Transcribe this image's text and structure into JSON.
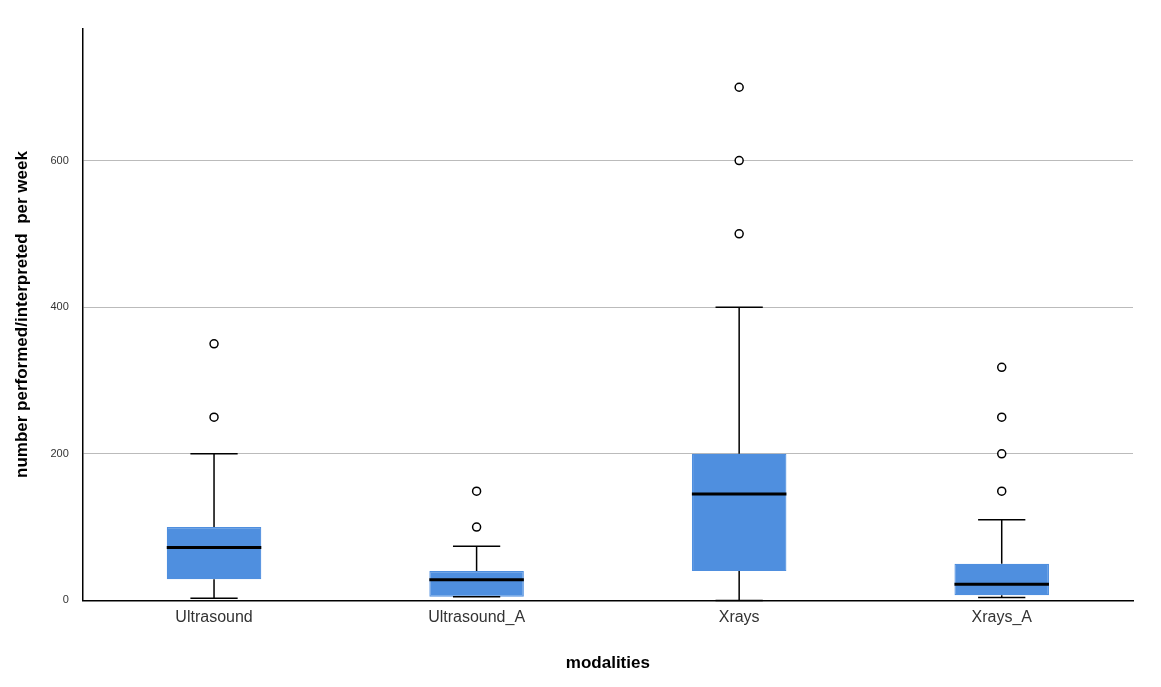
{
  "chart_data": {
    "type": "box",
    "xlabel": "modalities",
    "ylabel": "number performed/interpreted  per week",
    "categories": [
      "Ultrasound",
      "Ultrasound_A",
      "Xrays",
      "Xrays_A"
    ],
    "color": "#4f8fdf",
    "boxes": [
      {
        "low": 3,
        "q1": 29,
        "median": 72,
        "q3": 100,
        "high": 200,
        "outliers": [
          250,
          350
        ]
      },
      {
        "low": 5,
        "q1": 5,
        "median": 28,
        "q3": 40,
        "high": 74,
        "outliers": [
          100,
          149
        ]
      },
      {
        "low": 0,
        "q1": 40,
        "median": 145,
        "q3": 200,
        "high": 400,
        "outliers": [
          500,
          600,
          700
        ]
      },
      {
        "low": 4,
        "q1": 7,
        "median": 22,
        "q3": 50,
        "high": 110,
        "outliers": [
          149,
          200,
          250,
          318
        ]
      }
    ],
    "ylim": [
      0,
      780
    ],
    "yticks": [
      0,
      200,
      400,
      600
    ],
    "grid": "y",
    "marker": "circle"
  }
}
